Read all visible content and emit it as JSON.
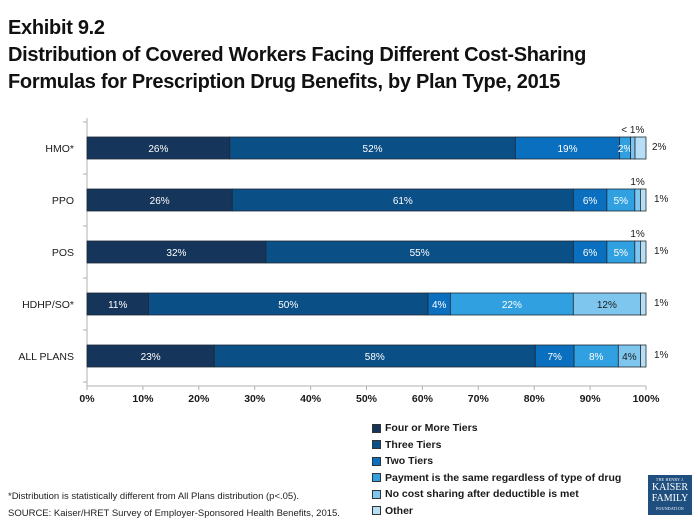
{
  "header": {
    "exhibit": "Exhibit 9.2",
    "title_line1": "Distribution of Covered Workers Facing Different Cost-Sharing",
    "title_line2": "Formulas for Prescription Drug Benefits, by Plan Type, 2015"
  },
  "chart_data": {
    "type": "bar",
    "orientation": "horizontal",
    "stacked": true,
    "title": "Distribution of Covered Workers Facing Different Cost-Sharing Formulas for Prescription Drug Benefits, by Plan Type, 2015",
    "xlabel": "",
    "ylabel": "",
    "xlim": [
      0,
      100
    ],
    "x_ticks": [
      "0%",
      "10%",
      "20%",
      "30%",
      "40%",
      "50%",
      "60%",
      "70%",
      "80%",
      "90%",
      "100%"
    ],
    "categories": [
      "HMO*",
      "PPO",
      "POS",
      "HDHP/SO*",
      "ALL PLANS"
    ],
    "series": [
      {
        "name": "Four or More Tiers",
        "color": "#15355a",
        "label_color": "#ffffff",
        "values": [
          26,
          26,
          32,
          11,
          23
        ],
        "labels": [
          "26%",
          "26%",
          "32%",
          "11%",
          "23%"
        ]
      },
      {
        "name": "Three Tiers",
        "color": "#0b4f87",
        "label_color": "#ffffff",
        "values": [
          52,
          61,
          55,
          50,
          58
        ],
        "labels": [
          "52%",
          "61%",
          "55%",
          "50%",
          "58%"
        ]
      },
      {
        "name": "Two Tiers",
        "color": "#0a6fbf",
        "label_color": "#ffffff",
        "values": [
          19,
          6,
          6,
          4,
          7
        ],
        "labels": [
          "19%",
          "6%",
          "6%",
          "4%",
          "7%"
        ]
      },
      {
        "name": "Payment is the same regardless of type of drug",
        "color": "#30a0e0",
        "label_color": "#ffffff",
        "values": [
          2,
          5,
          5,
          22,
          8
        ],
        "labels": [
          "2%",
          "5%",
          "5%",
          "22%",
          "8%"
        ]
      },
      {
        "name": "No cost sharing after deductible is met",
        "color": "#7fc6ee",
        "label_color": "#1a1a1a",
        "values": [
          0.8,
          1,
          1,
          12,
          4
        ],
        "labels": [
          "< 1%",
          "1%",
          "1%",
          "12%",
          "4%"
        ],
        "label_position": [
          "above",
          "above",
          "above",
          "inside",
          "inside"
        ]
      },
      {
        "name": "Other",
        "color": "#b8def5",
        "label_color": "#1a1a1a",
        "values": [
          2,
          1,
          1,
          1,
          1
        ],
        "labels": [
          "2%",
          "1%",
          "1%",
          "1%",
          "1%"
        ],
        "label_position": [
          "outside",
          "outside",
          "outside",
          "outside",
          "outside"
        ]
      }
    ],
    "legend_position": "bottom-right",
    "grid": false
  },
  "footnotes": {
    "significance": "*Distribution is statistically different from All Plans distribution (p<.05).",
    "source": "SOURCE: Kaiser/HRET Survey of Employer-Sponsored Health Benefits, 2015."
  },
  "logo": {
    "line1": "THE HENRY J.",
    "line2": "KAISER",
    "line3": "FAMILY",
    "line4": "FOUNDATION"
  }
}
